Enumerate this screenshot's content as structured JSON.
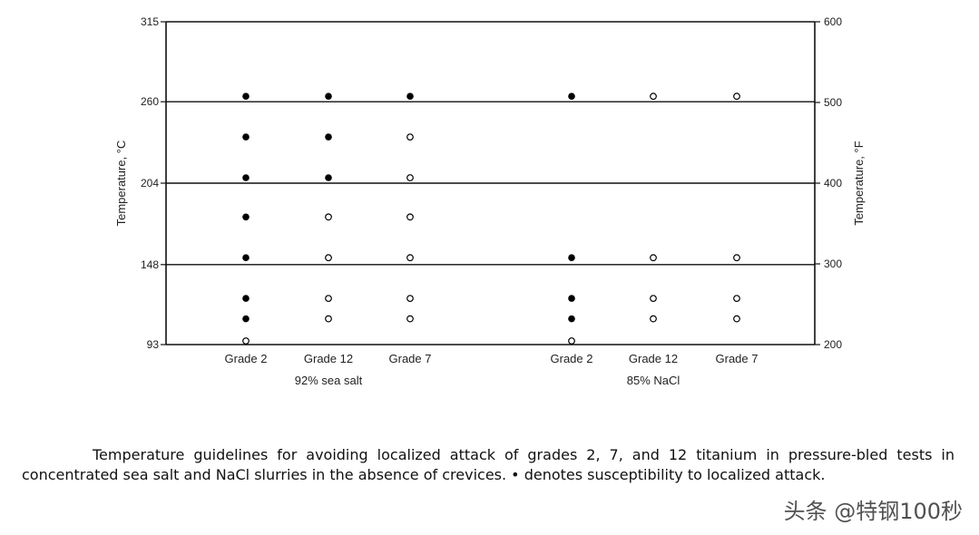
{
  "chart_data": {
    "type": "scatter",
    "left_axis": {
      "label": "Temperature, °C",
      "ticks": [
        315,
        260,
        204,
        148,
        93
      ],
      "range": [
        93,
        315
      ]
    },
    "right_axis": {
      "label": "Temperature, °F",
      "ticks": [
        600,
        500,
        400,
        300,
        200
      ],
      "range": [
        200,
        600
      ]
    },
    "reference_lines_c": [
      260,
      204,
      148
    ],
    "groups": [
      {
        "name": "92% sea salt",
        "categories": [
          "Grade 2",
          "Grade 12",
          "Grade 7"
        ],
        "points": [
          {
            "category": "Grade 2",
            "temp_c": 260,
            "susceptible": true
          },
          {
            "category": "Grade 2",
            "temp_c": 232,
            "susceptible": true
          },
          {
            "category": "Grade 2",
            "temp_c": 204,
            "susceptible": true
          },
          {
            "category": "Grade 2",
            "temp_c": 177,
            "susceptible": true
          },
          {
            "category": "Grade 2",
            "temp_c": 149,
            "susceptible": true
          },
          {
            "category": "Grade 2",
            "temp_c": 121,
            "susceptible": true
          },
          {
            "category": "Grade 2",
            "temp_c": 107,
            "susceptible": true
          },
          {
            "category": "Grade 2",
            "temp_c": 93,
            "susceptible": false
          },
          {
            "category": "Grade 12",
            "temp_c": 260,
            "susceptible": true
          },
          {
            "category": "Grade 12",
            "temp_c": 232,
            "susceptible": true
          },
          {
            "category": "Grade 12",
            "temp_c": 204,
            "susceptible": true
          },
          {
            "category": "Grade 12",
            "temp_c": 177,
            "susceptible": false
          },
          {
            "category": "Grade 12",
            "temp_c": 149,
            "susceptible": false
          },
          {
            "category": "Grade 12",
            "temp_c": 121,
            "susceptible": false
          },
          {
            "category": "Grade 12",
            "temp_c": 107,
            "susceptible": false
          },
          {
            "category": "Grade 7",
            "temp_c": 260,
            "susceptible": true
          },
          {
            "category": "Grade 7",
            "temp_c": 232,
            "susceptible": false
          },
          {
            "category": "Grade 7",
            "temp_c": 204,
            "susceptible": false
          },
          {
            "category": "Grade 7",
            "temp_c": 177,
            "susceptible": false
          },
          {
            "category": "Grade 7",
            "temp_c": 149,
            "susceptible": false
          },
          {
            "category": "Grade 7",
            "temp_c": 121,
            "susceptible": false
          },
          {
            "category": "Grade 7",
            "temp_c": 107,
            "susceptible": false
          }
        ]
      },
      {
        "name": "85% NaCl",
        "categories": [
          "Grade 2",
          "Grade 12",
          "Grade 7"
        ],
        "points": [
          {
            "category": "Grade 2",
            "temp_c": 260,
            "susceptible": true
          },
          {
            "category": "Grade 2",
            "temp_c": 149,
            "susceptible": true
          },
          {
            "category": "Grade 2",
            "temp_c": 121,
            "susceptible": true
          },
          {
            "category": "Grade 2",
            "temp_c": 107,
            "susceptible": true
          },
          {
            "category": "Grade 2",
            "temp_c": 93,
            "susceptible": false
          },
          {
            "category": "Grade 12",
            "temp_c": 260,
            "susceptible": false
          },
          {
            "category": "Grade 12",
            "temp_c": 149,
            "susceptible": false
          },
          {
            "category": "Grade 12",
            "temp_c": 121,
            "susceptible": false
          },
          {
            "category": "Grade 12",
            "temp_c": 107,
            "susceptible": false
          },
          {
            "category": "Grade 7",
            "temp_c": 260,
            "susceptible": false
          },
          {
            "category": "Grade 7",
            "temp_c": 149,
            "susceptible": false
          },
          {
            "category": "Grade 7",
            "temp_c": 121,
            "susceptible": false
          },
          {
            "category": "Grade 7",
            "temp_c": 107,
            "susceptible": false
          }
        ]
      }
    ],
    "grid": false,
    "legend": "none"
  },
  "caption": "Temperature guidelines for avoiding localized attack of grades 2, 7, and 12 titanium in pressure-bled tests in concentrated sea salt and NaCl slurries in the absence of crevices. • denotes susceptibility to localized attack.",
  "watermark": "头条 @特钢100秒"
}
